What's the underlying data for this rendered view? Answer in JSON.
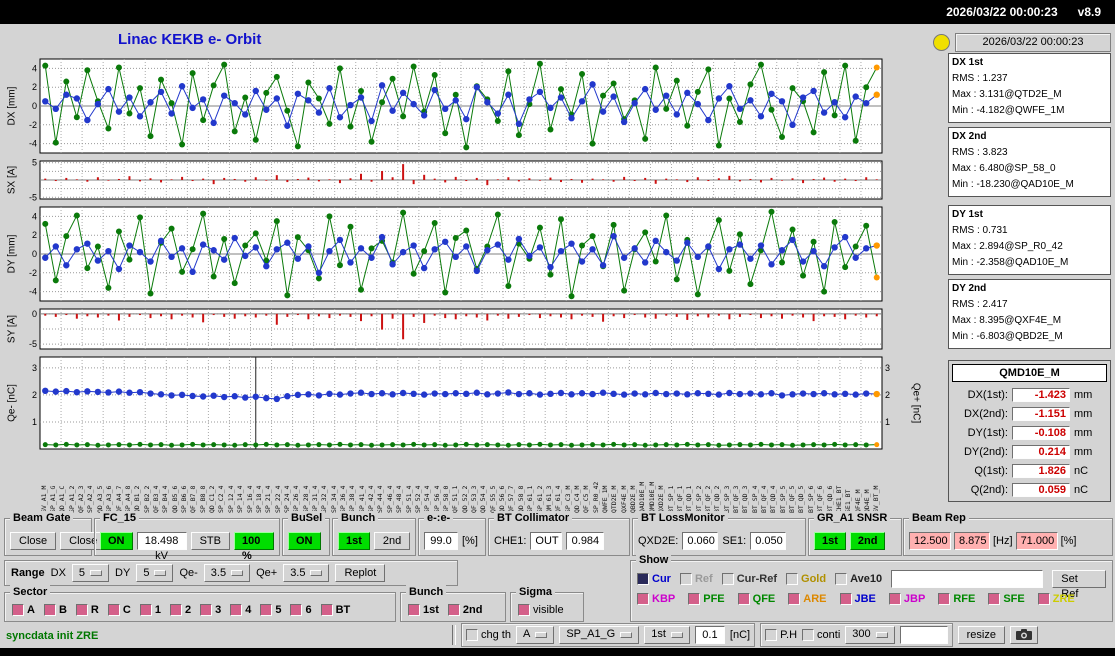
{
  "topbar": {
    "datetime": "2026/03/22 00:00:23",
    "version": "v8.9"
  },
  "title": "Linac KEKB e- Orbit",
  "colors": {
    "lamp": "#f0e000",
    "on_green": "#00dd00",
    "pink_value": "#ffb0b0",
    "checkbox_pink": "#d4608a",
    "value_red": "#cc0000",
    "title_blue": "#1212cc"
  },
  "info": {
    "timestamp": "2026/03/22 00:00:23",
    "stats": [
      {
        "title": "DX 1st",
        "rms": "RMS : 1.237",
        "max": "Max : 3.131@QTD2E_M",
        "min": "Min : -4.182@QWFE_1M"
      },
      {
        "title": "DX 2nd",
        "rms": "RMS : 3.823",
        "max": "Max : 6.480@SP_58_0",
        "min": "Min : -18.230@QAD10E_M"
      },
      {
        "title": "DY 1st",
        "rms": "RMS : 0.731",
        "max": "Max : 2.894@SP_R0_42",
        "min": "Min : -2.358@QAD10E_M"
      },
      {
        "title": "DY 2nd",
        "rms": "RMS : 2.417",
        "max": "Max : 8.395@QXF4E_M",
        "min": "Min : -6.803@QBD2E_M"
      }
    ],
    "monitor": {
      "title": "QMD10E_M",
      "rows": [
        {
          "label": "DX(1st):",
          "value": "-1.423",
          "unit": "mm"
        },
        {
          "label": "DX(2nd):",
          "value": "-1.151",
          "unit": "mm"
        },
        {
          "label": "DY(1st):",
          "value": "-0.108",
          "unit": "mm"
        },
        {
          "label": "DY(2nd):",
          "value": "0.214",
          "unit": "mm"
        },
        {
          "label": "Q(1st):",
          "value": "1.826",
          "unit": "nC"
        },
        {
          "label": "Q(2nd):",
          "value": "0.059",
          "unit": "nC"
        }
      ]
    }
  },
  "chart_data": [
    {
      "name": "DX",
      "type": "line-scatter",
      "ylabel": "DX [mm]",
      "ylim": [
        -5,
        5
      ],
      "yticks": [
        4,
        2,
        0,
        -2,
        -4
      ],
      "end_marker": "#ff9900",
      "series": [
        {
          "name": "2nd",
          "color": "#0a7a0a",
          "r": 3,
          "values": [
            4.3,
            -3.9,
            2.6,
            -1.2,
            3.8,
            0.5,
            -2.4,
            4.1,
            -0.8,
            1.9,
            -3.2,
            2.8,
            0.3,
            -4.1,
            3.5,
            -1.5,
            2.2,
            4.4,
            -2.7,
            0.9,
            -3.6,
            1.4,
            3.1,
            -0.5,
            -4.3,
            2.5,
            0.8,
            -1.9,
            4.0,
            -2.2,
            1.6,
            -3.8,
            0.4,
            2.9,
            -1.1,
            4.2,
            -0.6,
            3.3,
            -2.9,
            1.2,
            -4.4,
            2.1,
            0.7,
            -1.6,
            3.7,
            -3.1,
            0.2,
            4.5,
            -2.5,
            1.8,
            -0.9,
            3.4,
            -4.0,
            1.1,
            2.4,
            -1.4,
            0.6,
            -3.5,
            4.1,
            -0.3,
            2.7,
            -2.1,
            1.5,
            3.9,
            -4.2,
            0.8,
            -1.7,
            2.3,
            4.4,
            -0.4,
            -3.3,
            1.9,
            0.5,
            -2.8,
            3.6,
            -1.0,
            4.3,
            -3.7,
            2.0,
            4.1
          ]
        },
        {
          "name": "1st",
          "color": "#2238cc",
          "r": 3.2,
          "values": [
            0.5,
            -0.3,
            1.2,
            0.8,
            -1.5,
            0.2,
            1.8,
            -0.6,
            0.9,
            -1.1,
            0.4,
            1.5,
            -0.8,
            2.1,
            -0.2,
            0.7,
            -1.8,
            1.1,
            0.3,
            -0.9,
            1.6,
            -0.4,
            0.8,
            -2.1,
            1.3,
            0.6,
            -0.7,
            1.9,
            -1.2,
            0.1,
            0.9,
            -1.6,
            2.2,
            -0.5,
            1.4,
            0.2,
            -1.0,
            1.7,
            -0.3,
            0.6,
            -1.4,
            2.0,
            0.4,
            -0.8,
            1.2,
            -1.9,
            0.7,
            1.5,
            -0.2,
            0.9,
            -1.3,
            0.5,
            2.3,
            -0.6,
            1.0,
            -1.7,
            0.3,
            1.8,
            -0.4,
            1.1,
            -0.9,
            1.4,
            0.2,
            -1.5,
            0.8,
            2.1,
            -0.3,
            0.6,
            -1.1,
            1.3,
            0.5,
            -2.0,
            0.9,
            1.6,
            -0.7,
            0.4,
            -1.2,
            1.0,
            0.3,
            1.2
          ]
        }
      ]
    },
    {
      "name": "SX",
      "type": "bar",
      "ylabel": "SX [A]",
      "ylim": [
        -5.5,
        5.5
      ],
      "yticks": [
        5,
        -5
      ],
      "grid_extra": [
        2.5,
        0,
        -2.5
      ],
      "series": [
        {
          "name": "SX",
          "color": "#cc1111",
          "values": [
            0.4,
            -0.3,
            0.6,
            0.2,
            -0.5,
            0.8,
            -0.2,
            0.3,
            1.1,
            -0.4,
            0.5,
            -0.7,
            0.2,
            0.9,
            -0.3,
            0.4,
            -1.2,
            0.6,
            0.3,
            -0.5,
            0.8,
            -0.2,
            1.4,
            -0.6,
            0.3,
            0.7,
            -0.4,
            0.2,
            -0.9,
            0.5,
            1.8,
            -0.5,
            2.6,
            0.8,
            4.6,
            -1.2,
            1.5,
            0.4,
            -0.7,
            0.9,
            -0.3,
            0.6,
            -1.5,
            0.2,
            0.8,
            -0.4,
            0.5,
            -0.2,
            0.7,
            -0.6,
            0.3,
            -0.8,
            0.4,
            0.2,
            -0.5,
            0.9,
            -0.3,
            0.6,
            -1.1,
            0.4,
            0.2,
            -0.6,
            0.8,
            -0.3,
            0.5,
            1.2,
            -0.4,
            0.3,
            -0.7,
            0.6,
            -0.2,
            0.5,
            -0.9,
            0.3,
            0.7,
            -0.5,
            0.4,
            -0.3,
            0.8,
            0.2
          ]
        }
      ]
    },
    {
      "name": "DY",
      "type": "line-scatter",
      "ylabel": "DY [mm]",
      "ylim": [
        -5,
        5
      ],
      "yticks": [
        4,
        2,
        0,
        -2,
        -4
      ],
      "end_marker": "#ff9900",
      "series": [
        {
          "name": "2nd",
          "color": "#0a7a0a",
          "r": 3,
          "values": [
            3.2,
            -2.8,
            1.9,
            4.1,
            -1.5,
            0.8,
            -3.6,
            2.4,
            -0.6,
            3.9,
            -4.2,
            1.2,
            2.7,
            -1.9,
            0.5,
            4.3,
            -2.4,
            1.6,
            -3.1,
            0.9,
            2.2,
            -0.7,
            3.5,
            -4.4,
            1.8,
            0.4,
            -2.6,
            4.0,
            -1.2,
            2.9,
            -3.8,
            0.6,
            1.4,
            -0.9,
            4.4,
            -2.1,
            0.3,
            3.3,
            -4.1,
            1.7,
            2.5,
            -1.6,
            0.8,
            4.2,
            -3.4,
            1.1,
            -0.5,
            2.8,
            -2.2,
            3.7,
            -4.5,
            0.9,
            1.9,
            -1.3,
            3.1,
            -3.9,
            0.5,
            2.3,
            -0.8,
            4.1,
            -2.7,
            1.5,
            -4.3,
            0.7,
            3.6,
            -1.8,
            2.1,
            -3.2,
            0.4,
            4.5,
            -0.9,
            2.6,
            -2.3,
            1.3,
            -4.0,
            3.4,
            -1.4,
            0.8,
            3.0,
            -2.5
          ]
        },
        {
          "name": "1st",
          "color": "#2238cc",
          "r": 3.2,
          "values": [
            -0.4,
            0.8,
            -1.2,
            0.5,
            1.1,
            -0.7,
            0.3,
            -1.6,
            0.9,
            0.2,
            -0.8,
            1.4,
            -0.3,
            0.6,
            -1.9,
            1.0,
            0.4,
            -0.6,
            1.7,
            -0.2,
            0.7,
            -1.3,
            0.5,
            1.2,
            -0.5,
            0.8,
            -2.0,
            0.3,
            1.5,
            -0.9,
            0.6,
            -0.4,
            1.8,
            -1.1,
            0.2,
            0.9,
            -1.5,
            0.5,
            1.3,
            -0.3,
            0.8,
            -1.8,
            0.4,
            1.0,
            -0.6,
            1.6,
            -0.2,
            0.7,
            -1.4,
            0.3,
            1.1,
            -0.8,
            0.5,
            -1.2,
            1.9,
            -0.4,
            0.6,
            -0.9,
            1.4,
            0.2,
            -0.7,
            1.2,
            -0.3,
            0.8,
            -1.6,
            0.5,
            1.0,
            -0.5,
            0.9,
            -1.1,
            0.4,
            1.5,
            -0.8,
            0.3,
            -1.3,
            0.7,
            1.8,
            -0.4,
            0.6,
            0.9
          ]
        }
      ]
    },
    {
      "name": "SY",
      "type": "bar",
      "ylabel": "SY [A]",
      "ylim": [
        -5.8,
        0.8
      ],
      "yticks": [
        0,
        -5
      ],
      "grid_extra": [
        -2.5
      ],
      "series": [
        {
          "name": "SY",
          "color": "#cc1111",
          "values": [
            -0.3,
            -0.5,
            -0.2,
            -0.8,
            -0.4,
            -0.6,
            -0.3,
            -1.1,
            -0.5,
            -0.2,
            -0.7,
            -0.4,
            -0.9,
            -0.3,
            -0.6,
            -1.4,
            -0.2,
            -0.5,
            -0.8,
            -0.4,
            -0.6,
            -0.3,
            -1.8,
            -0.5,
            -0.2,
            -0.9,
            -0.4,
            -0.7,
            -0.3,
            -0.5,
            -1.2,
            -0.4,
            -2.6,
            -0.8,
            -4.2,
            -0.5,
            -1.5,
            -0.3,
            -0.7,
            -0.9,
            -0.4,
            -0.6,
            -1.1,
            -0.3,
            -0.8,
            -0.5,
            -0.2,
            -0.7,
            -0.4,
            -0.6,
            -0.9,
            -0.3,
            -0.5,
            -1.3,
            -0.4,
            -0.7,
            -0.2,
            -0.6,
            -0.8,
            -0.3,
            -0.5,
            -1.0,
            -0.4,
            -0.6,
            -0.3,
            -0.9,
            -0.5,
            -0.2,
            -0.7,
            -0.4,
            -0.8,
            -0.3,
            -0.6,
            -1.2,
            -0.4,
            -0.5,
            -0.9,
            -0.3,
            -0.6,
            -0.4
          ]
        }
      ]
    },
    {
      "name": "Qe",
      "type": "line-scatter",
      "ylabel": "Qe- [nC]",
      "ylabel_right": "Qe+ [nC]",
      "ylim": [
        0,
        3.4
      ],
      "yticks": [
        3,
        2,
        1
      ],
      "yticks_right": [
        3,
        2,
        1
      ],
      "end_marker": "#ff9900",
      "vline_index": 20,
      "series": [
        {
          "name": "e- charge",
          "color": "#2238cc",
          "r": 3.2,
          "values": [
            2.15,
            2.12,
            2.14,
            2.1,
            2.13,
            2.11,
            2.09,
            2.12,
            2.08,
            2.1,
            2.05,
            2.02,
            1.98,
            2.0,
            1.96,
            1.94,
            1.97,
            1.92,
            1.95,
            1.9,
            1.93,
            1.88,
            1.85,
            1.95,
            2.0,
            2.02,
            1.98,
            2.04,
            2.01,
            2.05,
            2.08,
            2.03,
            2.06,
            2.02,
            2.07,
            2.04,
            2.01,
            2.05,
            2.03,
            2.06,
            2.04,
            2.08,
            2.02,
            2.05,
            2.09,
            2.03,
            2.06,
            2.01,
            2.04,
            2.07,
            2.02,
            2.06,
            2.03,
            2.08,
            2.04,
            2.01,
            2.05,
            2.02,
            2.07,
            2.03,
            2.05,
            2.02,
            2.06,
            2.04,
            2.01,
            2.07,
            2.03,
            2.05,
            2.02,
            2.06,
            1.98,
            2.02,
            2.05,
            2.03,
            2.06,
            2.02,
            2.04,
            2.01,
            2.05,
            2.03
          ]
        },
        {
          "name": "e+ charge",
          "color": "#0a7a0a",
          "r": 2.5,
          "values": [
            0.16,
            0.15,
            0.17,
            0.15,
            0.16,
            0.14,
            0.15,
            0.16,
            0.15,
            0.17,
            0.15,
            0.16,
            0.14,
            0.15,
            0.17,
            0.15,
            0.16,
            0.15,
            0.14,
            0.16,
            0.15,
            0.17,
            0.15,
            0.16,
            0.14,
            0.15,
            0.16,
            0.15,
            0.17,
            0.15,
            0.16,
            0.14,
            0.15,
            0.16,
            0.15,
            0.17,
            0.15,
            0.16,
            0.14,
            0.15,
            0.17,
            0.15,
            0.16,
            0.15,
            0.14,
            0.16,
            0.15,
            0.17,
            0.15,
            0.16,
            0.14,
            0.15,
            0.16,
            0.15,
            0.17,
            0.15,
            0.16,
            0.14,
            0.15,
            0.16,
            0.15,
            0.17,
            0.15,
            0.16,
            0.14,
            0.15,
            0.16,
            0.15,
            0.17,
            0.15,
            0.16,
            0.14,
            0.15,
            0.16,
            0.15,
            0.17,
            0.15,
            0.16,
            0.15,
            0.16
          ]
        }
      ]
    }
  ],
  "xaxis_labels": [
    "GV_A1_M",
    "SP_A1_G",
    "QD_A1_C",
    "SP_A1_2",
    "QF_A2_3",
    "SP_A2_4",
    "QD_A3_5",
    "SP_A3_6",
    "QF_A4_7",
    "SP_A4_8",
    "QD_B1_2",
    "SP_B2_2",
    "QF_B3_4",
    "SP_B4_4",
    "QD_B5_6",
    "SP_B6_6",
    "QF_B7_8",
    "SP_B8_8",
    "QD_C1_2",
    "SP_C2_4",
    "SP_12_4",
    "SP_14_4",
    "SP_16_4",
    "SP_18_4",
    "SP_21_4",
    "SP_22_4",
    "SP_24_4",
    "SP_26_4",
    "SP_28_4",
    "SP_31_4",
    "SP_32_4",
    "SP_34_4",
    "SP_36_4",
    "SP_38_4",
    "SP_41_4",
    "SP_42_4",
    "SP_44_4",
    "SP_46_4",
    "SP_48_4",
    "SP_51_4",
    "SP_52_4",
    "SP_54_4",
    "SP_56_4",
    "SP_58_0",
    "QF_51_1",
    "QD_52_2",
    "QF_53_3",
    "QD_54_4",
    "QF_55_5",
    "QD_56_6",
    "QF_57_7",
    "QD_58_8",
    "SP_61_1",
    "SP_61_2",
    "QM_61_3",
    "QF_61_4",
    "SP_C3_M",
    "QD_C4_M",
    "QF_C5_M",
    "SP_R0_42",
    "QWFE_1M",
    "QTD2E_M",
    "QXF4E_M",
    "QBD2E_M",
    "QAD10E_M",
    "QMD10E_M",
    "QXD2E_M",
    "BT_SP_1",
    "BT_QF_1",
    "BT_QD_1",
    "BT_SP_2",
    "BT_QF_2",
    "BT_QD_2",
    "BT_SP_3",
    "BT_QF_3",
    "BT_QD_3",
    "BT_SP_4",
    "BT_QF_4",
    "BT_QD_4",
    "BT_SP_5",
    "BT_QF_5",
    "BT_QD_5",
    "BT_SP_6",
    "BT_QF_6",
    "BT_QD_6",
    "CHE1_BT",
    "SE1_BT",
    "QF4E_M",
    "QD4E_M",
    "GV_BT_M"
  ],
  "panels": {
    "beam_gate": {
      "title": "Beam Gate",
      "buttons": [
        "Close",
        "Close"
      ]
    },
    "fc15": {
      "title": "FC_15",
      "on": "ON",
      "kv": "18.498 kV",
      "stb": "STB",
      "pct": "100 %"
    },
    "busel": {
      "title": "BuSel",
      "on": "ON"
    },
    "bunch": {
      "title": "Bunch",
      "first": "1st",
      "second": "2nd"
    },
    "ee": {
      "title": "e-:e-",
      "value": "99.0",
      "unit": "[%]"
    },
    "bt_collimator": {
      "title": "BT Collimator",
      "che1_label": "CHE1:",
      "che1": "OUT",
      "value": "0.984"
    },
    "bt_lossmonitor": {
      "title": "BT LossMonitor",
      "qxd2e_label": "QXD2E:",
      "qxd2e": "0.060",
      "se1_label": "SE1:",
      "se1": "0.050"
    },
    "gr_snsr": {
      "title": "GR_A1 SNSR",
      "first": "1st",
      "second": "2nd"
    },
    "beam_rep": {
      "title": "Beam Rep",
      "v1": "12.500",
      "v2": "8.875",
      "hz": "[Hz]",
      "v3": "71.000",
      "pct": "[%]"
    }
  },
  "range_row": {
    "label": "Range",
    "dx_label": "DX",
    "dx": "5",
    "dy_label": "DY",
    "dy": "5",
    "qem_label": "Qe-",
    "qem": "3.5",
    "qep_label": "Qe+",
    "qep": "3.5",
    "replot": "Replot"
  },
  "sector": {
    "title": "Sector",
    "items": [
      "A",
      "B",
      "R",
      "C",
      "1",
      "2",
      "3",
      "4",
      "5",
      "6",
      "BT"
    ]
  },
  "bunch_sel": {
    "title": "Bunch",
    "items": [
      "1st",
      "2nd"
    ]
  },
  "sigma": {
    "title": "Sigma",
    "items": [
      "visible"
    ]
  },
  "show": {
    "title": "Show",
    "row1": [
      {
        "label": "Cur",
        "color": "#0000cc",
        "box": "#2a2a5a"
      },
      {
        "label": "Ref",
        "color": "#9a9a9a"
      },
      {
        "label": "Cur-Ref",
        "color": "#333333"
      },
      {
        "label": "Gold",
        "color": "#b09000"
      },
      {
        "label": "Ave10",
        "color": "#222222"
      }
    ],
    "input_value": "",
    "set_ref": "Set Ref",
    "row2": [
      {
        "label": "KBP",
        "color": "#cc00cc"
      },
      {
        "label": "PFE",
        "color": "#008800"
      },
      {
        "label": "QFE",
        "color": "#008800"
      },
      {
        "label": "ARE",
        "color": "#dd8800"
      },
      {
        "label": "JBE",
        "color": "#0000cc"
      },
      {
        "label": "JBP",
        "color": "#cc00cc"
      },
      {
        "label": "RFE",
        "color": "#008800"
      },
      {
        "label": "SFE",
        "color": "#008800"
      },
      {
        "label": "ZRE",
        "color": "#cccc00"
      }
    ]
  },
  "bottom": {
    "status": "syncdata init ZRE",
    "chg_th": "chg th",
    "sel_a": "A",
    "sel_sp": "SP_A1_G",
    "sel_1st": "1st",
    "th_value": "0.1",
    "th_unit": "[nC]",
    "ph": "P.H",
    "conti": "conti",
    "sel_300": "300",
    "extra_value": "",
    "resize": "resize"
  }
}
